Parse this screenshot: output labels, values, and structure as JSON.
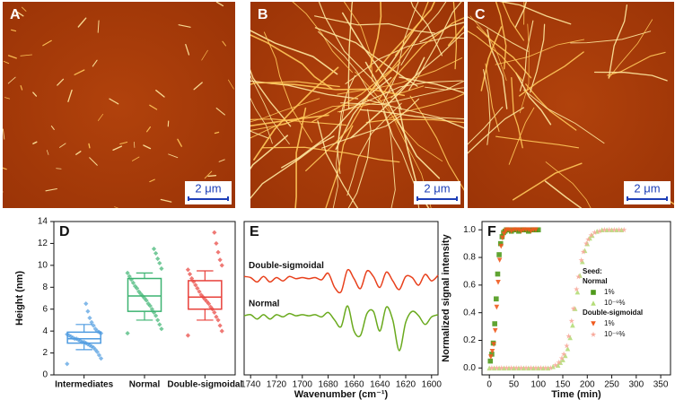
{
  "images": [
    {
      "label": "A",
      "scale_bar": "2 μm"
    },
    {
      "label": "B",
      "scale_bar": "2 μm"
    },
    {
      "label": "C",
      "scale_bar": "2 μm"
    }
  ],
  "chart_data": [
    {
      "type": "box",
      "panel": "D",
      "ylabel": "Height (nm)",
      "categories": [
        "Intermediates",
        "Normal",
        "Double-sigmoidal"
      ],
      "colors": [
        "#4f9be0",
        "#3cb371",
        "#e8403a"
      ],
      "ylim": [
        0,
        14
      ],
      "yticks": [
        0,
        2,
        4,
        6,
        8,
        10,
        12,
        14
      ],
      "boxes": [
        {
          "whislo": 2.3,
          "q1": 2.9,
          "med": 3.3,
          "q3": 3.9,
          "whishi": 4.6
        },
        {
          "whislo": 5.0,
          "q1": 5.8,
          "med": 7.2,
          "q3": 8.8,
          "whishi": 9.3
        },
        {
          "whislo": 5.0,
          "q1": 6.0,
          "med": 7.1,
          "q3": 8.6,
          "whishi": 9.5
        }
      ],
      "points": [
        [
          1.0,
          1.5,
          1.8,
          2.1,
          2.3,
          2.5,
          2.6,
          2.7,
          2.8,
          2.9,
          3.0,
          3.0,
          3.1,
          3.2,
          3.3,
          3.3,
          3.4,
          3.5,
          3.6,
          3.7,
          3.8,
          3.9,
          4.0,
          4.2,
          4.5,
          4.8,
          5.2,
          5.8,
          6.5
        ],
        [
          3.8,
          4.2,
          4.6,
          5.0,
          5.4,
          5.7,
          6.0,
          6.3,
          6.5,
          6.8,
          7.0,
          7.2,
          7.4,
          7.6,
          7.9,
          8.1,
          8.4,
          8.7,
          9.0,
          9.3,
          9.7,
          10.2,
          10.6,
          11.1,
          11.5
        ],
        [
          3.6,
          4.0,
          4.5,
          5.0,
          5.3,
          5.7,
          6.0,
          6.2,
          6.5,
          6.7,
          6.9,
          7.1,
          7.3,
          7.6,
          7.9,
          8.2,
          8.5,
          8.8,
          9.2,
          9.6,
          10.0,
          10.5,
          11.2,
          12.0,
          13.0
        ]
      ]
    },
    {
      "type": "line",
      "panel": "E",
      "xlabel": "Wavenumber (cm⁻¹)",
      "xlim": [
        1745,
        1595
      ],
      "xticks": [
        1740,
        1720,
        1700,
        1680,
        1660,
        1640,
        1620,
        1600
      ],
      "x": [
        1745,
        1740,
        1735,
        1730,
        1725,
        1720,
        1715,
        1710,
        1705,
        1700,
        1695,
        1690,
        1685,
        1680,
        1675,
        1670,
        1665,
        1660,
        1655,
        1650,
        1645,
        1640,
        1635,
        1630,
        1625,
        1620,
        1615,
        1610,
        1605,
        1600,
        1595
      ],
      "series": [
        {
          "name": "Double-sigmoidal",
          "color": "#e8401c",
          "values": [
            7.0,
            6.9,
            6.5,
            7.0,
            6.5,
            6.9,
            6.6,
            7.0,
            6.8,
            6.9,
            6.8,
            6.9,
            6.7,
            7.3,
            6.0,
            5.6,
            7.6,
            6.8,
            5.9,
            7.5,
            7.0,
            6.0,
            7.4,
            6.6,
            5.8,
            7.0,
            6.9,
            6.2,
            7.2,
            6.6,
            7.1
          ]
        },
        {
          "name": "Normal",
          "color": "#6aaa1e",
          "values": [
            3.4,
            3.5,
            3.1,
            3.5,
            3.1,
            3.5,
            3.3,
            3.6,
            3.4,
            3.5,
            3.4,
            3.5,
            3.3,
            3.7,
            3.0,
            2.4,
            4.3,
            2.0,
            1.6,
            3.6,
            3.8,
            2.0,
            4.2,
            3.0,
            0.2,
            2.8,
            3.8,
            3.4,
            2.6,
            3.3,
            3.5
          ]
        }
      ]
    },
    {
      "type": "scatter",
      "panel": "F",
      "xlabel": "Time (min)",
      "ylabel": "Normalized signal intensity",
      "xlim": [
        -15,
        370
      ],
      "ylim": [
        -0.05,
        1.06
      ],
      "xticks": [
        0,
        50,
        100,
        150,
        200,
        250,
        300,
        350
      ],
      "yticks": [
        {
          "value": 0,
          "label": "0.0"
        },
        {
          "value": 0.2,
          "label": "0.2"
        },
        {
          "value": 0.4,
          "label": "0.4"
        },
        {
          "value": 0.6,
          "label": "0.6"
        },
        {
          "value": 0.8,
          "label": "0.8"
        },
        {
          "value": 1,
          "label": "1.0"
        }
      ],
      "legend_title": "Seed:",
      "groups": [
        {
          "name": "Normal",
          "series": [
            {
              "name": "1%",
              "color": "#4f9a1c",
              "marker": "square",
              "x": [
                2,
                5,
                8,
                11,
                14,
                17,
                20,
                23,
                26,
                29,
                32,
                35,
                40,
                45,
                50,
                55,
                60,
                65,
                70,
                75,
                80,
                85,
                90,
                95,
                100
              ],
              "values": [
                0.05,
                0.1,
                0.18,
                0.32,
                0.5,
                0.68,
                0.82,
                0.9,
                0.95,
                0.98,
                0.99,
                1.0,
                1,
                0.99,
                1,
                1,
                0.99,
                1,
                1,
                1,
                0.99,
                1,
                1,
                1,
                1
              ]
            },
            {
              "name": "10⁻⁶%",
              "color": "#b5dd7a",
              "marker": "triangle",
              "x": [
                0,
                10,
                20,
                30,
                40,
                50,
                60,
                70,
                80,
                90,
                100,
                110,
                120,
                130,
                140,
                145,
                150,
                155,
                160,
                165,
                170,
                175,
                180,
                185,
                190,
                195,
                200,
                205,
                210,
                220,
                230,
                240,
                250,
                260,
                270
              ],
              "values": [
                0,
                0,
                0,
                0,
                0,
                0,
                0,
                0,
                0,
                0,
                0,
                0,
                0,
                0.01,
                0.02,
                0.04,
                0.06,
                0.09,
                0.14,
                0.22,
                0.31,
                0.43,
                0.55,
                0.67,
                0.77,
                0.85,
                0.9,
                0.94,
                0.96,
                0.99,
                1,
                1,
                1,
                1,
                1
              ]
            }
          ]
        },
        {
          "name": "Double-sigmoidal",
          "series": [
            {
              "name": "1%",
              "color": "#f05a1e",
              "marker": "down-triangle",
              "x": [
                3,
                6,
                9,
                12,
                15,
                18,
                21,
                24,
                27,
                30,
                33,
                36,
                40,
                45,
                50,
                55,
                60,
                65,
                70,
                75,
                80,
                85,
                90,
                95
              ],
              "values": [
                0.08,
                0.12,
                0.17,
                0.27,
                0.44,
                0.62,
                0.78,
                0.88,
                0.94,
                0.97,
                0.99,
                1.0,
                1,
                0.99,
                1,
                1,
                1,
                0.99,
                1,
                1,
                1,
                0.99,
                1,
                1
              ]
            },
            {
              "name": "10⁻⁶%",
              "color": "#f7a89a",
              "marker": "star",
              "x": [
                5,
                15,
                25,
                35,
                45,
                55,
                65,
                75,
                85,
                95,
                105,
                115,
                125,
                135,
                142,
                148,
                152,
                158,
                162,
                168,
                172,
                178,
                182,
                188,
                192,
                198,
                202,
                208,
                215,
                225,
                235,
                245,
                255,
                265,
                275
              ],
              "values": [
                0,
                0,
                0,
                0,
                0,
                0,
                0,
                0,
                0,
                0,
                0,
                0,
                0,
                0.02,
                0.04,
                0.07,
                0.1,
                0.16,
                0.23,
                0.34,
                0.43,
                0.57,
                0.66,
                0.78,
                0.84,
                0.9,
                0.93,
                0.96,
                0.98,
                0.99,
                1,
                1,
                1,
                1,
                1
              ]
            }
          ]
        }
      ]
    }
  ]
}
